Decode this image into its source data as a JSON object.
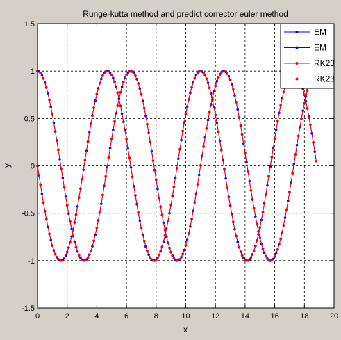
{
  "chart_data": {
    "type": "line",
    "title": "Runge-kutta method and predict corrector euler method",
    "xlabel": "x",
    "ylabel": "y",
    "xlim": [
      0,
      20
    ],
    "ylim": [
      -1.5,
      1.5
    ],
    "xticks": [
      "0",
      "2",
      "4",
      "6",
      "8",
      "10",
      "12",
      "14",
      "16",
      "18",
      "20"
    ],
    "yticks": [
      "1.5",
      "1",
      "0.5",
      "0",
      "-0.5",
      "-1",
      "-1.5"
    ],
    "grid": true,
    "legend_position": "top-right",
    "x_range_of_data": [
      0,
      18.85
    ],
    "series": [
      {
        "name": "EM",
        "color": "#0000ff",
        "marker": "dot",
        "function": "sin(-x)",
        "sample_step": 0.1
      },
      {
        "name": "EM",
        "color": "#0000ff",
        "marker": "dot",
        "function": "cos(x)",
        "sample_step": 0.1
      },
      {
        "name": "RK23",
        "color": "#ff0000",
        "marker": "dot",
        "function": "sin(-x)",
        "sample_step": 0.2
      },
      {
        "name": "RK23",
        "color": "#ff0000",
        "marker": "dot",
        "function": "cos(x)",
        "sample_step": 0.2
      }
    ]
  }
}
